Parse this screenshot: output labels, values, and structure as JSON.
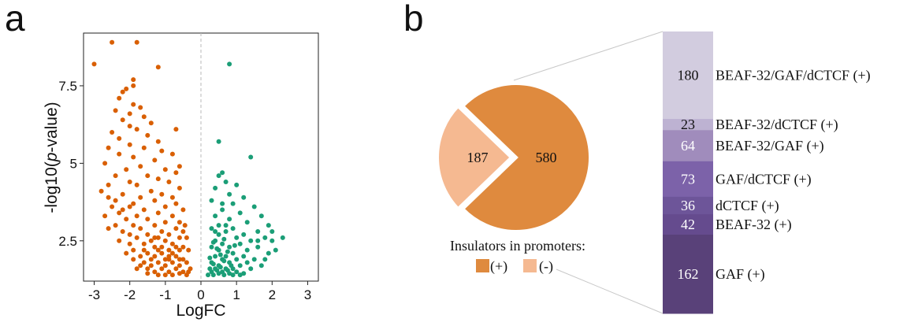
{
  "panels": {
    "a": "a",
    "b": "b"
  },
  "chart_data": [
    {
      "type": "scatter",
      "panel": "a",
      "xlabel": "LogFC",
      "ylabel_prefix": "-log10(",
      "ylabel_italic": "p",
      "ylabel_suffix": "-value)",
      "xlim": [
        -3.3,
        3.3
      ],
      "ylim": [
        1.2,
        9.2
      ],
      "xticks": [
        -3,
        -2,
        -1,
        0,
        1,
        2,
        3
      ],
      "yticks": [
        2.5,
        5,
        7.5
      ],
      "ytick_labels": [
        "2.5",
        "5",
        "7.5"
      ],
      "vline_x": 0,
      "colors": {
        "down": "#d95f02",
        "up": "#1b9e77",
        "vline": "#b8b8b8"
      },
      "series": [
        {
          "values": [
            [
              -3.0,
              8.2
            ],
            [
              -2.5,
              8.9
            ],
            [
              -1.8,
              8.9
            ],
            [
              -1.2,
              8.1
            ],
            [
              -1.9,
              7.7
            ],
            [
              -1.9,
              7.5
            ],
            [
              -2.1,
              7.4
            ],
            [
              -2.2,
              7.3
            ],
            [
              -2.3,
              7.1
            ],
            [
              -1.9,
              6.9
            ],
            [
              -1.7,
              6.8
            ],
            [
              -2.4,
              6.7
            ],
            [
              -2.0,
              6.6
            ],
            [
              -1.6,
              6.5
            ],
            [
              -2.2,
              6.4
            ],
            [
              -1.4,
              6.3
            ],
            [
              -2.0,
              6.2
            ],
            [
              -0.7,
              6.1
            ],
            [
              -1.8,
              6.1
            ],
            [
              -2.5,
              6.0
            ],
            [
              -1.5,
              5.9
            ],
            [
              -2.3,
              5.8
            ],
            [
              -1.2,
              5.7
            ],
            [
              -2.0,
              5.6
            ],
            [
              -2.6,
              5.5
            ],
            [
              -1.6,
              5.5
            ],
            [
              -1.1,
              5.4
            ],
            [
              -0.8,
              5.3
            ],
            [
              -2.3,
              5.3
            ],
            [
              -1.9,
              5.2
            ],
            [
              -1.3,
              5.1
            ],
            [
              -2.7,
              5.0
            ],
            [
              -0.6,
              4.9
            ],
            [
              -1.7,
              4.9
            ],
            [
              -2.1,
              4.8
            ],
            [
              -1.0,
              4.8
            ],
            [
              -0.7,
              4.7
            ],
            [
              -2.4,
              4.6
            ],
            [
              -1.5,
              4.6
            ],
            [
              -1.2,
              4.5
            ],
            [
              -2.0,
              4.4
            ],
            [
              -0.9,
              4.4
            ],
            [
              -2.6,
              4.3
            ],
            [
              -1.8,
              4.3
            ],
            [
              -0.6,
              4.2
            ],
            [
              -1.4,
              4.1
            ],
            [
              -2.2,
              4.0
            ],
            [
              -1.1,
              4.0
            ],
            [
              -1.7,
              3.9
            ],
            [
              -0.8,
              3.9
            ],
            [
              -2.4,
              3.8
            ],
            [
              -1.3,
              3.8
            ],
            [
              -0.7,
              3.7
            ],
            [
              -1.9,
              3.7
            ],
            [
              -2.0,
              3.6
            ],
            [
              -1.0,
              3.6
            ],
            [
              -1.6,
              3.5
            ],
            [
              -0.5,
              3.5
            ],
            [
              -2.3,
              3.4
            ],
            [
              -1.2,
              3.4
            ],
            [
              -0.8,
              3.3
            ],
            [
              -1.8,
              3.3
            ],
            [
              -2.1,
              3.2
            ],
            [
              -1.5,
              3.2
            ],
            [
              -0.6,
              3.1
            ],
            [
              -1.0,
              3.1
            ],
            [
              -1.9,
              3.0
            ],
            [
              -2.4,
              3.0
            ],
            [
              -1.3,
              3.0
            ],
            [
              -0.7,
              2.9
            ],
            [
              -1.7,
              2.9
            ],
            [
              -2.2,
              2.8
            ],
            [
              -1.1,
              2.8
            ],
            [
              -0.5,
              2.8
            ],
            [
              -1.5,
              2.7
            ],
            [
              -2.0,
              2.7
            ],
            [
              -0.9,
              2.7
            ],
            [
              -1.2,
              2.6
            ],
            [
              -1.8,
              2.6
            ],
            [
              -0.6,
              2.6
            ],
            [
              -2.3,
              2.5
            ],
            [
              -1.4,
              2.5
            ],
            [
              -1.0,
              2.5
            ],
            [
              -0.8,
              2.4
            ],
            [
              -1.6,
              2.4
            ],
            [
              -2.0,
              2.4
            ],
            [
              -0.5,
              2.3
            ],
            [
              -1.3,
              2.3
            ],
            [
              -1.9,
              2.2
            ],
            [
              -0.9,
              2.2
            ],
            [
              -0.6,
              2.2
            ],
            [
              -1.5,
              2.1
            ],
            [
              -1.1,
              2.1
            ],
            [
              -2.1,
              2.1
            ],
            [
              -0.7,
              2.0
            ],
            [
              -1.7,
              2.0
            ],
            [
              -1.3,
              2.0
            ],
            [
              -0.9,
              1.9
            ],
            [
              -1.9,
              1.9
            ],
            [
              -0.5,
              1.9
            ],
            [
              -1.2,
              1.8
            ],
            [
              -1.6,
              1.8
            ],
            [
              -0.8,
              1.8
            ],
            [
              -0.6,
              1.7
            ],
            [
              -1.4,
              1.7
            ],
            [
              -1.0,
              1.7
            ],
            [
              -1.8,
              1.6
            ],
            [
              -0.7,
              1.6
            ],
            [
              -1.1,
              1.6
            ],
            [
              -0.5,
              1.5
            ],
            [
              -1.3,
              1.5
            ],
            [
              -0.9,
              1.5
            ],
            [
              -1.5,
              1.45
            ],
            [
              -0.6,
              1.45
            ],
            [
              -1.0,
              1.4
            ],
            [
              -0.8,
              1.4
            ],
            [
              -1.2,
              1.4
            ],
            [
              -0.4,
              1.4
            ],
            [
              -2.6,
              3.9
            ],
            [
              -2.8,
              4.1
            ],
            [
              -2.5,
              3.6
            ],
            [
              -2.7,
              3.3
            ],
            [
              -2.2,
              3.5
            ],
            [
              -2.6,
              2.9
            ],
            [
              -0.4,
              1.8
            ],
            [
              -0.35,
              2.2
            ],
            [
              -0.4,
              2.6
            ],
            [
              -0.45,
              3.0
            ],
            [
              -0.3,
              1.6
            ],
            [
              -0.35,
              1.5
            ],
            [
              -1.4,
              1.9
            ],
            [
              -1.6,
              2.2
            ],
            [
              -1.1,
              2.3
            ],
            [
              -0.9,
              2.0
            ],
            [
              -0.7,
              2.3
            ],
            [
              -1.3,
              2.6
            ],
            [
              -1.0,
              1.9
            ],
            [
              -0.8,
              2.1
            ],
            [
              -0.6,
              1.9
            ],
            [
              -1.2,
              2.2
            ],
            [
              -1.5,
              1.6
            ],
            [
              -1.7,
              1.7
            ]
          ]
        },
        {
          "values": [
            [
              0.8,
              8.2
            ],
            [
              0.5,
              5.7
            ],
            [
              1.4,
              5.2
            ],
            [
              0.6,
              4.7
            ],
            [
              0.5,
              4.6
            ],
            [
              0.7,
              4.4
            ],
            [
              1.0,
              4.3
            ],
            [
              0.4,
              4.2
            ],
            [
              0.8,
              4.0
            ],
            [
              1.2,
              3.9
            ],
            [
              0.3,
              3.8
            ],
            [
              0.9,
              3.7
            ],
            [
              1.5,
              3.6
            ],
            [
              0.6,
              3.5
            ],
            [
              1.1,
              3.4
            ],
            [
              0.4,
              3.3
            ],
            [
              1.7,
              3.3
            ],
            [
              0.8,
              3.2
            ],
            [
              1.3,
              3.1
            ],
            [
              0.5,
              3.0
            ],
            [
              1.9,
              3.0
            ],
            [
              0.9,
              2.9
            ],
            [
              0.3,
              2.9
            ],
            [
              1.6,
              2.8
            ],
            [
              2.3,
              2.6
            ],
            [
              0.7,
              2.8
            ],
            [
              1.2,
              2.7
            ],
            [
              0.5,
              2.7
            ],
            [
              1.8,
              2.6
            ],
            [
              1.0,
              2.6
            ],
            [
              0.4,
              2.5
            ],
            [
              1.4,
              2.5
            ],
            [
              2.0,
              2.5
            ],
            [
              0.6,
              2.4
            ],
            [
              1.1,
              2.4
            ],
            [
              0.8,
              2.3
            ],
            [
              1.6,
              2.3
            ],
            [
              0.3,
              2.3
            ],
            [
              1.3,
              2.2
            ],
            [
              0.5,
              2.2
            ],
            [
              0.9,
              2.1
            ],
            [
              1.9,
              2.1
            ],
            [
              0.7,
              2.0
            ],
            [
              1.2,
              2.0
            ],
            [
              0.4,
              2.0
            ],
            [
              1.5,
              1.9
            ],
            [
              0.6,
              1.9
            ],
            [
              1.0,
              1.9
            ],
            [
              0.8,
              1.8
            ],
            [
              0.3,
              1.8
            ],
            [
              1.3,
              1.8
            ],
            [
              0.5,
              1.7
            ],
            [
              1.1,
              1.7
            ],
            [
              1.7,
              1.7
            ],
            [
              0.7,
              1.6
            ],
            [
              0.4,
              1.6
            ],
            [
              0.9,
              1.6
            ],
            [
              1.4,
              1.6
            ],
            [
              0.6,
              1.5
            ],
            [
              0.3,
              1.5
            ],
            [
              1.0,
              1.5
            ],
            [
              0.8,
              1.45
            ],
            [
              0.5,
              1.45
            ],
            [
              1.2,
              1.45
            ],
            [
              0.35,
              1.4
            ],
            [
              0.65,
              1.4
            ],
            [
              0.9,
              1.4
            ],
            [
              0.2,
              1.4
            ],
            [
              1.1,
              1.4
            ],
            [
              0.45,
              1.55
            ],
            [
              0.75,
              1.55
            ],
            [
              0.25,
              1.6
            ],
            [
              0.55,
              1.65
            ],
            [
              0.85,
              1.7
            ],
            [
              0.35,
              1.75
            ],
            [
              0.65,
              1.85
            ],
            [
              0.25,
              1.95
            ],
            [
              0.55,
              2.05
            ],
            [
              0.75,
              2.15
            ],
            [
              0.45,
              2.25
            ],
            [
              0.95,
              2.35
            ],
            [
              0.35,
              2.45
            ],
            [
              0.65,
              2.55
            ],
            [
              2.1,
              2.2
            ],
            [
              1.8,
              1.9
            ],
            [
              1.6,
              2.5
            ],
            [
              2.0,
              2.8
            ],
            [
              0.6,
              3.7
            ],
            [
              0.7,
              3.0
            ],
            [
              0.4,
              2.8
            ]
          ]
        }
      ]
    },
    {
      "type": "pie",
      "panel": "b",
      "slices": [
        {
          "value": 580,
          "label": "580",
          "color": "#df8a3e"
        },
        {
          "value": 187,
          "label": "187",
          "color": "#f5b991"
        }
      ],
      "legend_title": "Insulators in promoters:",
      "legend": [
        {
          "label": "(+)",
          "color": "#df8a3e"
        },
        {
          "label": "(-)",
          "color": "#f5b991"
        }
      ]
    },
    {
      "type": "bar",
      "panel": "b",
      "stacked": true,
      "segments": [
        {
          "value": 180,
          "label": "BEAF-32/GAF/dCTCF (+)",
          "color": "#d2ccdf",
          "text_color": "#111111"
        },
        {
          "value": 23,
          "label": "BEAF-32/dCTCF (+)",
          "color": "#bdb2d2",
          "text_color": "#111111"
        },
        {
          "value": 64,
          "label": "BEAF-32/GAF (+)",
          "color": "#a08cbc",
          "text_color": "#ffffff"
        },
        {
          "value": 73,
          "label": "GAF/dCTCF (+)",
          "color": "#7c62a9",
          "text_color": "#ffffff"
        },
        {
          "value": 36,
          "label": "dCTCF (+)",
          "color": "#6d5599",
          "text_color": "#ffffff"
        },
        {
          "value": 42,
          "label": "BEAF-32 (+)",
          "color": "#654b8e",
          "text_color": "#ffffff"
        },
        {
          "value": 162,
          "label": "GAF (+)",
          "color": "#594179",
          "text_color": "#ffffff"
        }
      ]
    }
  ]
}
